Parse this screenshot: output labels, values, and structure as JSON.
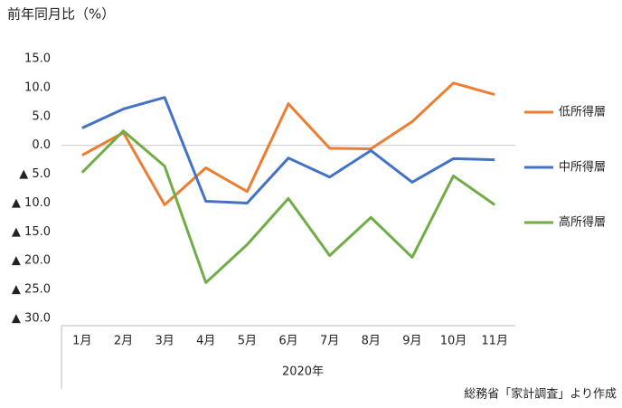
{
  "chart_data": {
    "type": "line",
    "title": "前年同月比（%）",
    "x_label": "2020年",
    "source": "総務省「家計調査」より作成",
    "categories": [
      "1月",
      "2月",
      "3月",
      "4月",
      "5月",
      "6月",
      "7月",
      "8月",
      "9月",
      "10月",
      "11月"
    ],
    "series": [
      {
        "name": "低所得層",
        "color": "#ED7D31",
        "values": [
          -1.7,
          2.2,
          -10.3,
          -3.9,
          -8.0,
          7.2,
          -0.5,
          -0.6,
          4.1,
          10.8,
          8.8
        ]
      },
      {
        "name": "中所得層",
        "color": "#4472C4",
        "values": [
          3.0,
          6.3,
          8.3,
          -9.7,
          -10.0,
          -2.2,
          -5.5,
          -0.9,
          -6.4,
          -2.3,
          -2.5
        ]
      },
      {
        "name": "高所得層",
        "color": "#70AD47",
        "values": [
          -4.7,
          2.5,
          -3.6,
          -23.8,
          -17.2,
          -9.2,
          -19.1,
          -12.5,
          -19.4,
          -5.3,
          -10.3
        ]
      }
    ],
    "ylim": [
      -30,
      15
    ],
    "yticks": [
      {
        "value": 15,
        "label": "15.0"
      },
      {
        "value": 10,
        "label": "10.0"
      },
      {
        "value": 5,
        "label": "5.0"
      },
      {
        "value": 0,
        "label": "0.0"
      },
      {
        "value": -5,
        "label": "▲ 5.0"
      },
      {
        "value": -10,
        "label": "▲ 10.0"
      },
      {
        "value": -15,
        "label": "▲ 15.0"
      },
      {
        "value": -20,
        "label": "▲ 20.0"
      },
      {
        "value": -25,
        "label": "▲ 25.0"
      },
      {
        "value": -30,
        "label": "▲ 30.0"
      }
    ],
    "zero_line": true,
    "legend": "right"
  }
}
